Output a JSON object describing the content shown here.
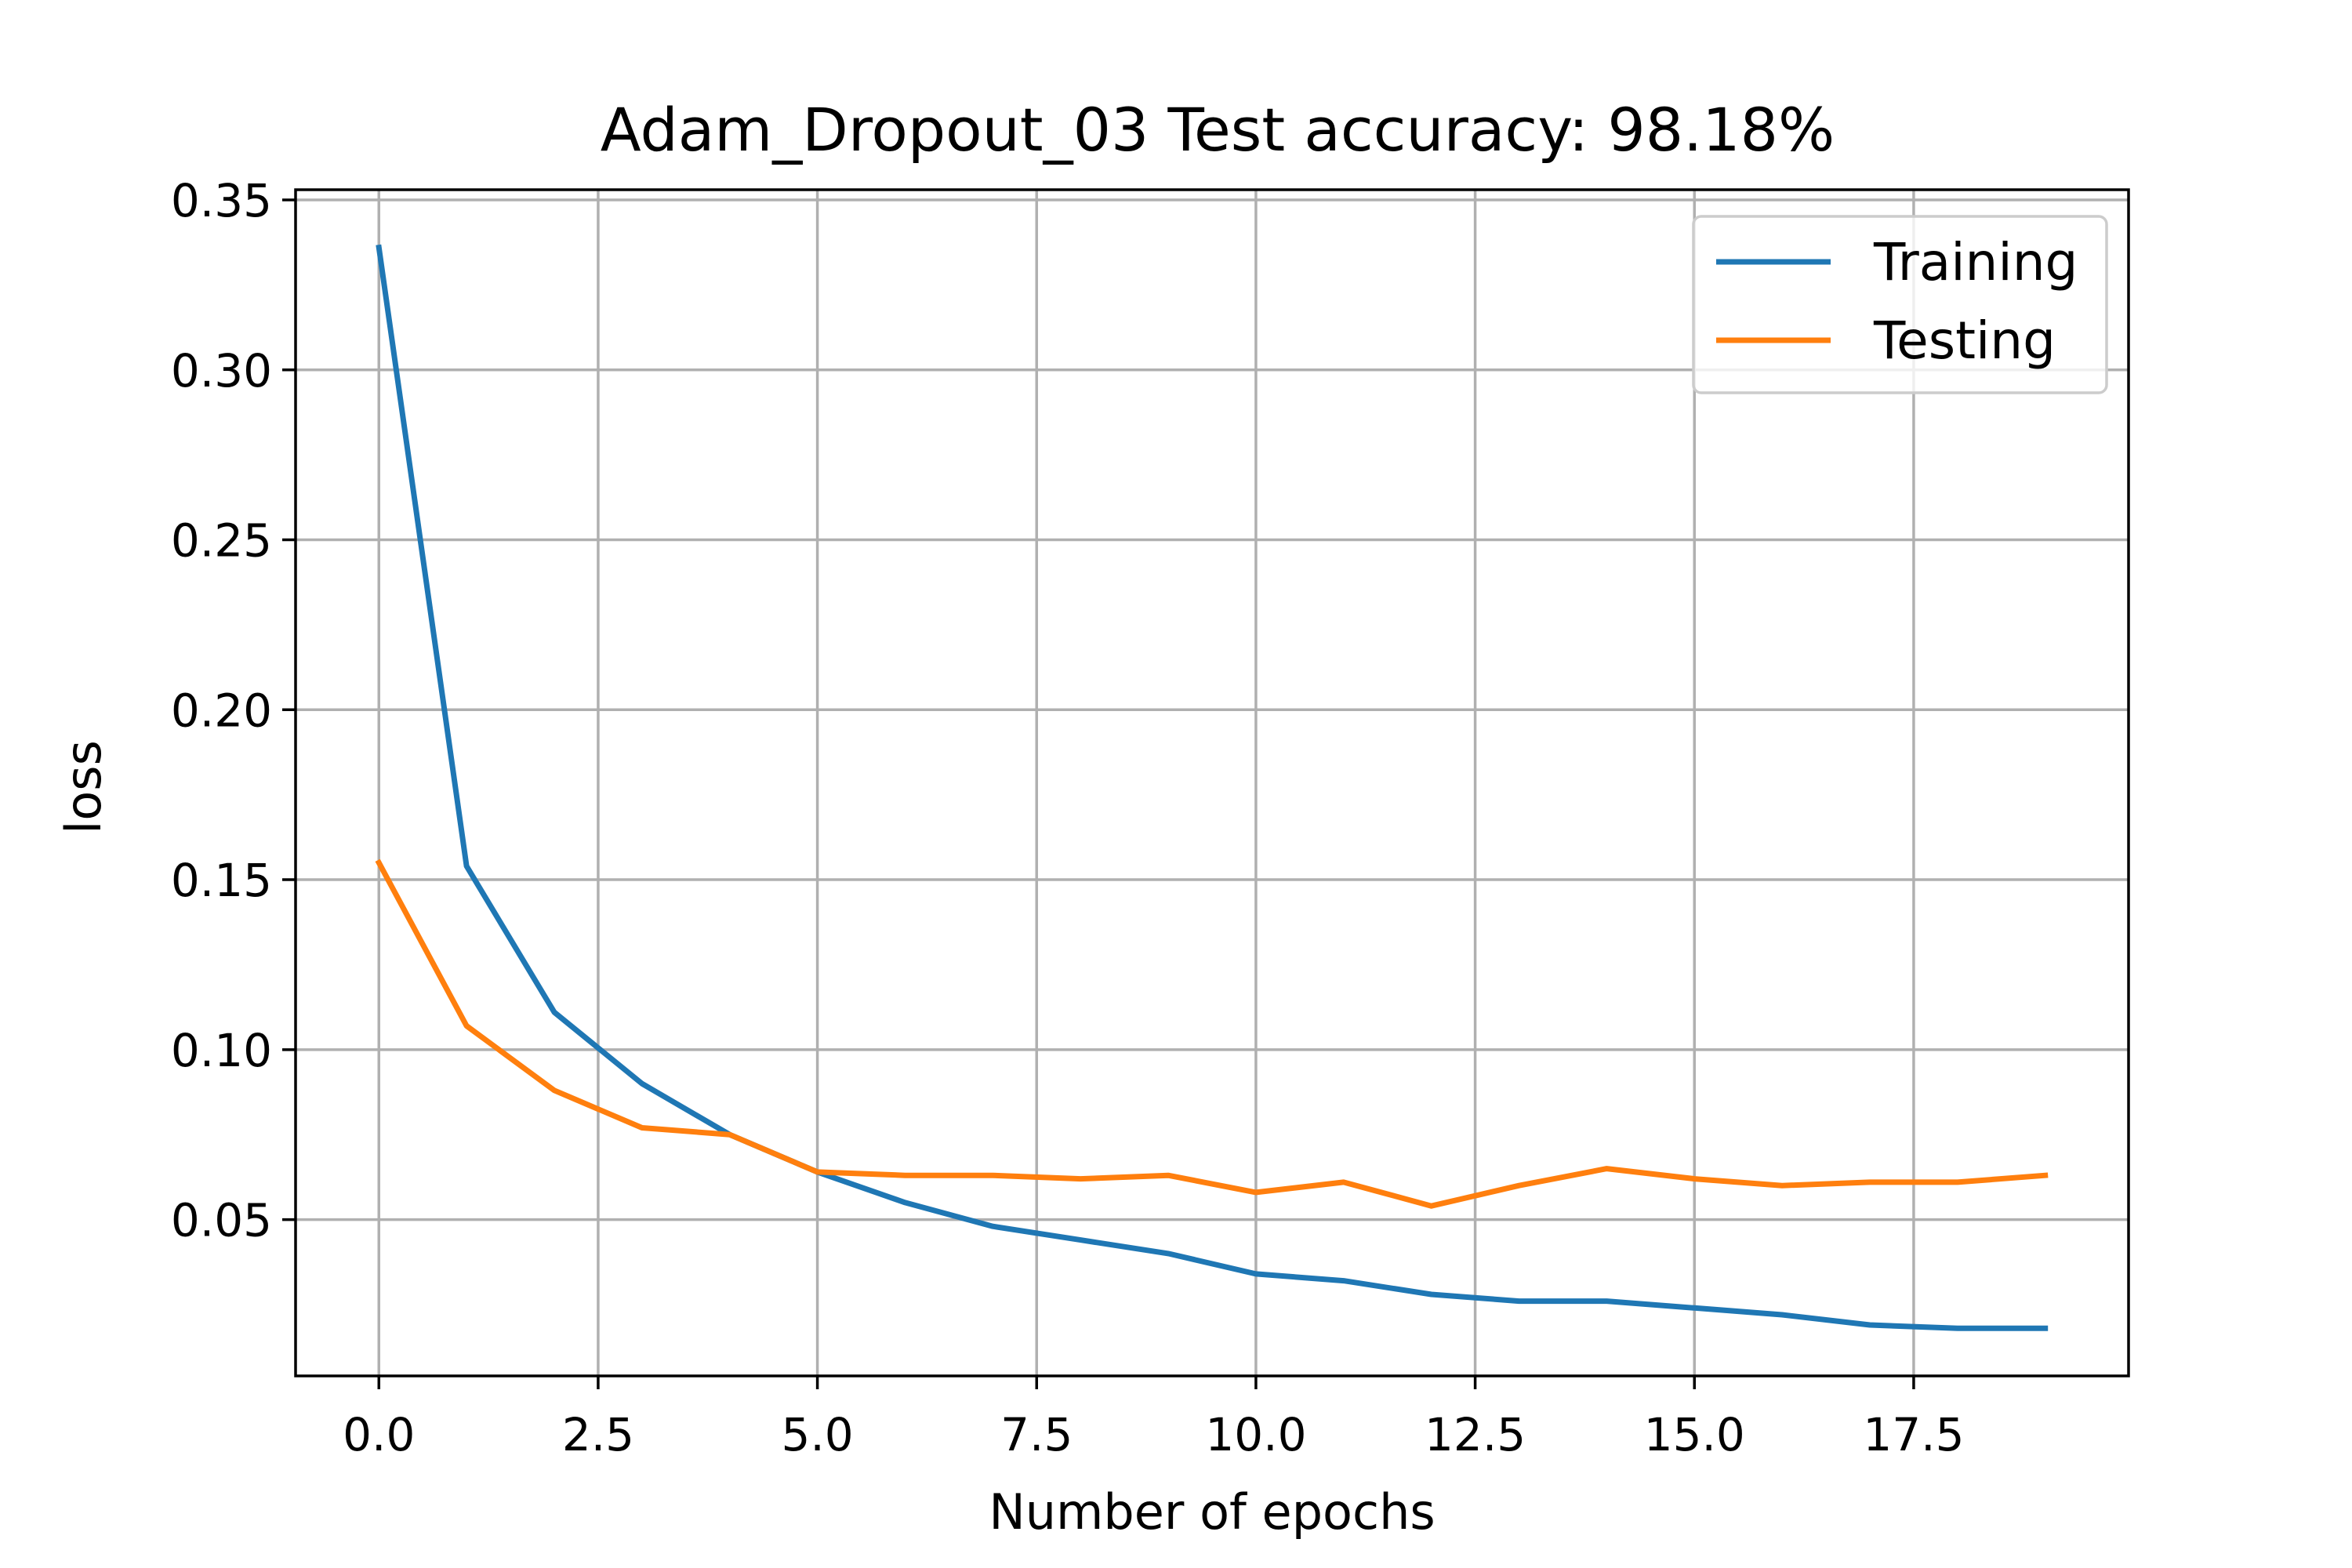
{
  "chart_data": {
    "type": "line",
    "title": "Adam_Dropout_03 Test accuracy: 98.18%",
    "xlabel": "Number of epochs",
    "ylabel": "loss",
    "xlim": [
      -0.95,
      19.95
    ],
    "ylim": [
      0.004,
      0.353
    ],
    "xticks": [
      0.0,
      2.5,
      5.0,
      7.5,
      10.0,
      12.5,
      15.0,
      17.5
    ],
    "xtick_labels": [
      "0.0",
      "2.5",
      "5.0",
      "7.5",
      "10.0",
      "12.5",
      "15.0",
      "17.5"
    ],
    "yticks": [
      0.05,
      0.1,
      0.15,
      0.2,
      0.25,
      0.3,
      0.35
    ],
    "ytick_labels": [
      "0.05",
      "0.10",
      "0.15",
      "0.20",
      "0.25",
      "0.30",
      "0.35"
    ],
    "grid": true,
    "legend_position": "top-right",
    "x": [
      0,
      1,
      2,
      3,
      4,
      5,
      6,
      7,
      8,
      9,
      10,
      11,
      12,
      13,
      14,
      15,
      16,
      17,
      18,
      19
    ],
    "series": [
      {
        "name": "Training",
        "color": "#1f77b4",
        "values": [
          0.336,
          0.154,
          0.111,
          0.09,
          0.075,
          0.064,
          0.055,
          0.048,
          0.044,
          0.04,
          0.034,
          0.032,
          0.028,
          0.026,
          0.026,
          0.024,
          0.022,
          0.019,
          0.018,
          0.018
        ]
      },
      {
        "name": "Testing",
        "color": "#ff7f0e",
        "values": [
          0.155,
          0.107,
          0.088,
          0.077,
          0.075,
          0.064,
          0.063,
          0.063,
          0.062,
          0.063,
          0.058,
          0.061,
          0.054,
          0.06,
          0.065,
          0.062,
          0.06,
          0.061,
          0.061,
          0.063
        ]
      }
    ]
  }
}
